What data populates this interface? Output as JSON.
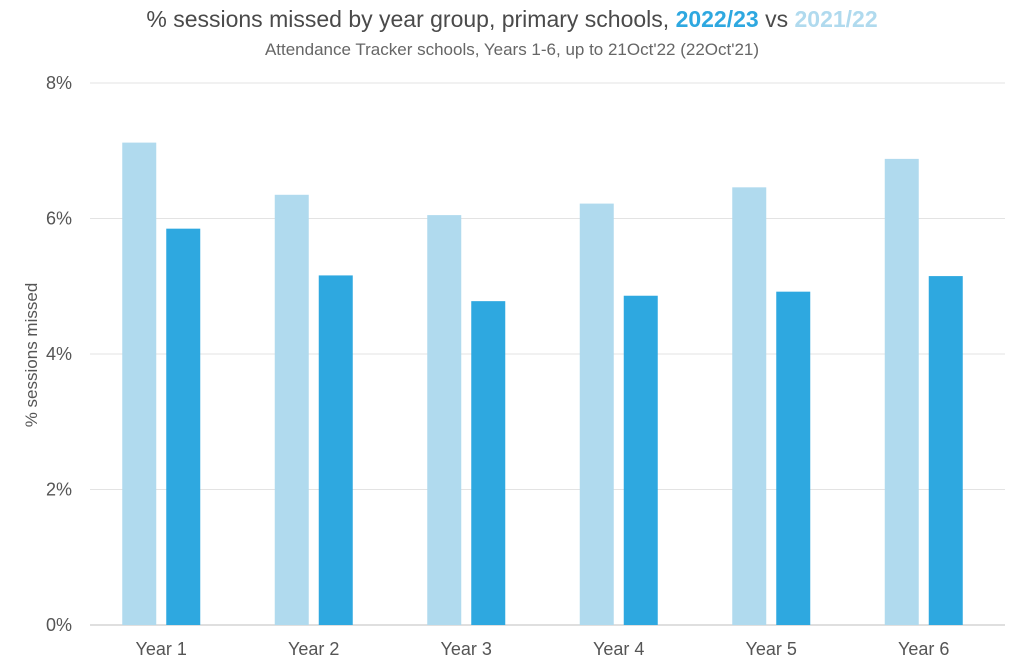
{
  "chart_data": {
    "type": "bar",
    "title": {
      "prefix": "% sessions missed by year group, primary schools,",
      "series1_label": "2022/23",
      "joiner": "vs",
      "series2_label": "2021/22"
    },
    "subtitle": "Attendance Tracker schools, Years 1-6, up to 21Oct'22 (22Oct'21)",
    "ylabel": "% sessions missed",
    "xlabel": "",
    "ylim": [
      0,
      8
    ],
    "yticks": [
      {
        "value": 0,
        "label": "0%"
      },
      {
        "value": 2,
        "label": "2%"
      },
      {
        "value": 4,
        "label": "4%"
      },
      {
        "value": 6,
        "label": "6%"
      },
      {
        "value": 8,
        "label": "8%"
      }
    ],
    "categories": [
      "Year 1",
      "Year 2",
      "Year 3",
      "Year 4",
      "Year 5",
      "Year 6"
    ],
    "series": [
      {
        "name": "2021/22",
        "color": "#B0DAEE",
        "values": [
          7.12,
          6.35,
          6.05,
          6.22,
          6.46,
          6.88
        ]
      },
      {
        "name": "2022/23",
        "color": "#2EA8E0",
        "values": [
          5.85,
          5.16,
          4.78,
          4.86,
          4.92,
          5.15
        ]
      }
    ],
    "grid": true,
    "legend": "none"
  }
}
